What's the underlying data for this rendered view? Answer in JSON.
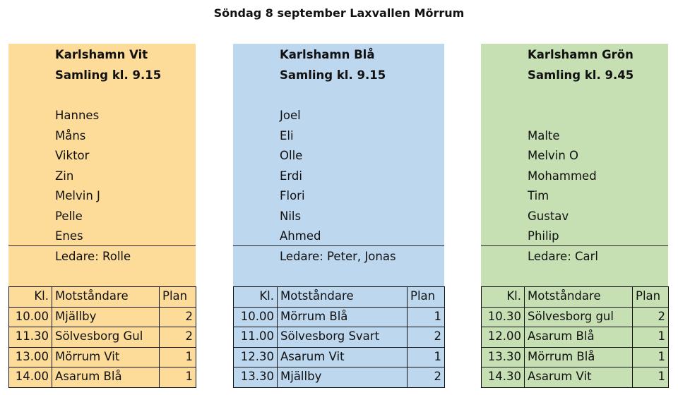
{
  "title": "Söndag 8 september Laxvallen Mörrum",
  "teams": [
    {
      "name": "Karlshamn Vit",
      "samling": "Samling kl. 9.15",
      "players": [
        "Hannes",
        "Måns",
        "Viktor",
        "Zin",
        "Melvin J",
        "Pelle",
        "Enes"
      ],
      "leader": "Ledare: Rolle",
      "table": {
        "header": [
          "Kl.",
          "Motståndare",
          "Plan"
        ],
        "rows": [
          [
            "10.00",
            "Mjällby",
            2
          ],
          [
            "11.30",
            "Sölvesborg Gul",
            2
          ],
          [
            "13.00",
            "Mörrum Vit",
            1
          ],
          [
            "14.00",
            "Asarum Blå",
            1
          ]
        ]
      }
    },
    {
      "name": "Karlshamn Blå",
      "samling": "Samling kl. 9.15",
      "players": [
        "Joel",
        "Eli",
        "Olle",
        "Erdi",
        "Flori",
        "Nils",
        "Ahmed"
      ],
      "leader": "Ledare: Peter, Jonas",
      "table": {
        "header": [
          "Kl.",
          "Motståndare",
          "Plan"
        ],
        "rows": [
          [
            "10.00",
            "Mörrum Blå",
            1
          ],
          [
            "11.00",
            "Sölvesborg Svart",
            2
          ],
          [
            "12.30",
            "Asarum Vit",
            1
          ],
          [
            "13.30",
            "Mjällby",
            2
          ]
        ]
      }
    },
    {
      "name": "Karlshamn Grön",
      "samling": "Samling kl. 9.45",
      "players": [
        "Malte",
        "Melvin O",
        "Mohammed",
        "Tim",
        "Gustav",
        "Philip"
      ],
      "leader": "Ledare: Carl",
      "table": {
        "header": [
          "Kl.",
          "Motståndare",
          "Plan"
        ],
        "rows": [
          [
            "10.30",
            "Sölvesborg gul",
            2
          ],
          [
            "12.00",
            "Asarum Blå",
            1
          ],
          [
            "13.30",
            "Mörrum Blå",
            1
          ],
          [
            "14.30",
            "Asarum Vit",
            1
          ]
        ]
      }
    }
  ]
}
